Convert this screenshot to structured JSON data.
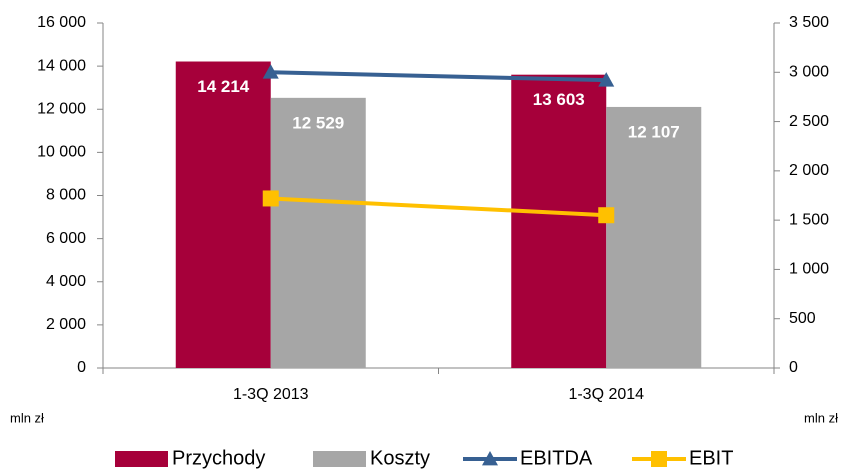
{
  "chart_data": {
    "type": "bar",
    "categories": [
      "1-3Q 2013",
      "1-3Q 2014"
    ],
    "y_label": "mln zł",
    "y2_label": "mln zł",
    "series": [
      {
        "name": "Przychody",
        "type": "bar",
        "color": "#a6003a",
        "values": [
          14214,
          13603
        ],
        "value_labels": [
          "14 214",
          "13 603"
        ]
      },
      {
        "name": "Koszty",
        "type": "bar",
        "color": "#a6a6a6",
        "values": [
          12529,
          12107
        ],
        "value_labels": [
          "12 529",
          "12 107"
        ]
      },
      {
        "name": "EBITDA",
        "type": "line",
        "axis": "y2",
        "marker": "triangle",
        "color": "#376092",
        "values": [
          3000,
          2920
        ]
      },
      {
        "name": "EBIT",
        "type": "line",
        "axis": "y2",
        "marker": "square",
        "color": "#ffc000",
        "values": [
          1720,
          1550
        ]
      }
    ],
    "ylim": [
      0,
      16000
    ],
    "yticks": [
      0,
      {
        "value": 2000,
        "label": "2 000"
      },
      {
        "value": 4000,
        "label": "4 000"
      },
      {
        "value": 6000,
        "label": "6 000"
      },
      {
        "value": 8000,
        "label": "8 000"
      },
      {
        "value": 10000,
        "label": "10 000"
      },
      {
        "value": 12000,
        "label": "12 000"
      },
      {
        "value": 14000,
        "label": "14 000"
      },
      {
        "value": 16000,
        "label": "16 000"
      }
    ],
    "y2lim": [
      0,
      3500
    ],
    "y2ticks": [
      0,
      500,
      {
        "value": 1000,
        "label": "1 000"
      },
      {
        "value": 1500,
        "label": "1 500"
      },
      {
        "value": 2000,
        "label": "2 000"
      },
      {
        "value": 2500,
        "label": "2 500"
      },
      {
        "value": 3000,
        "label": "3 000"
      },
      {
        "value": 3500,
        "label": "3 500"
      }
    ],
    "grid": false,
    "legend": "bottom"
  }
}
